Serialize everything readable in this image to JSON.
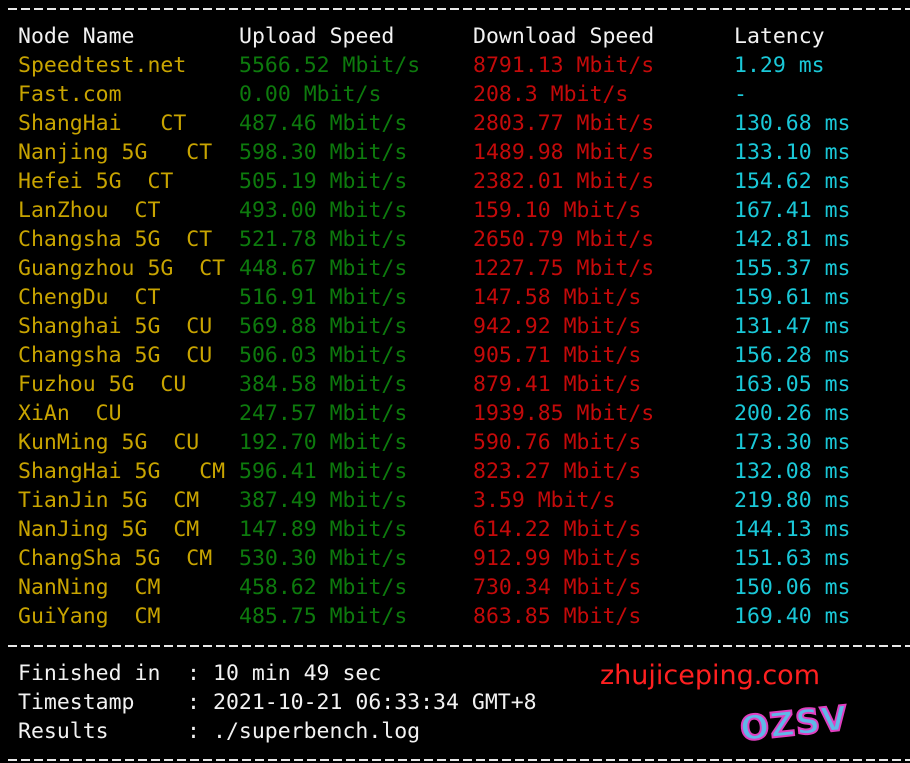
{
  "header": {
    "node": "Node Name",
    "upload": "Upload Speed",
    "download": "Download Speed",
    "latency": "Latency"
  },
  "rows": [
    {
      "node": "Speedtest.net",
      "upload": "5566.52 Mbit/s",
      "download": "8791.13 Mbit/s",
      "latency": "1.29 ms"
    },
    {
      "node": "Fast.com",
      "upload": "0.00 Mbit/s",
      "download": "208.3 Mbit/s",
      "latency": "-"
    },
    {
      "node": "ShangHai   CT",
      "upload": "487.46 Mbit/s",
      "download": "2803.77 Mbit/s",
      "latency": "130.68 ms"
    },
    {
      "node": "Nanjing 5G   CT",
      "upload": "598.30 Mbit/s",
      "download": "1489.98 Mbit/s",
      "latency": "133.10 ms"
    },
    {
      "node": "Hefei 5G  CT",
      "upload": "505.19 Mbit/s",
      "download": "2382.01 Mbit/s",
      "latency": "154.62 ms"
    },
    {
      "node": "LanZhou  CT",
      "upload": "493.00 Mbit/s",
      "download": "159.10 Mbit/s",
      "latency": "167.41 ms"
    },
    {
      "node": "Changsha 5G  CT",
      "upload": "521.78 Mbit/s",
      "download": "2650.79 Mbit/s",
      "latency": "142.81 ms"
    },
    {
      "node": "Guangzhou 5G  CT",
      "upload": "448.67 Mbit/s",
      "download": "1227.75 Mbit/s",
      "latency": "155.37 ms"
    },
    {
      "node": "ChengDu  CT",
      "upload": "516.91 Mbit/s",
      "download": "147.58 Mbit/s",
      "latency": "159.61 ms"
    },
    {
      "node": "Shanghai 5G  CU",
      "upload": "569.88 Mbit/s",
      "download": "942.92 Mbit/s",
      "latency": "131.47 ms"
    },
    {
      "node": "Changsha 5G  CU",
      "upload": "506.03 Mbit/s",
      "download": "905.71 Mbit/s",
      "latency": "156.28 ms"
    },
    {
      "node": "Fuzhou 5G  CU",
      "upload": "384.58 Mbit/s",
      "download": "879.41 Mbit/s",
      "latency": "163.05 ms"
    },
    {
      "node": "XiAn  CU",
      "upload": "247.57 Mbit/s",
      "download": "1939.85 Mbit/s",
      "latency": "200.26 ms"
    },
    {
      "node": "KunMing 5G  CU",
      "upload": "192.70 Mbit/s",
      "download": "590.76 Mbit/s",
      "latency": "173.30 ms"
    },
    {
      "node": "ShangHai 5G   CM",
      "upload": "596.41 Mbit/s",
      "download": "823.27 Mbit/s",
      "latency": "132.08 ms"
    },
    {
      "node": "TianJin 5G  CM",
      "upload": "387.49 Mbit/s",
      "download": "3.59 Mbit/s",
      "latency": "219.80 ms"
    },
    {
      "node": "NanJing 5G  CM",
      "upload": "147.89 Mbit/s",
      "download": "614.22 Mbit/s",
      "latency": "144.13 ms"
    },
    {
      "node": "ChangSha 5G  CM",
      "upload": "530.30 Mbit/s",
      "download": "912.99 Mbit/s",
      "latency": "151.63 ms"
    },
    {
      "node": "NanNing  CM",
      "upload": "458.62 Mbit/s",
      "download": "730.34 Mbit/s",
      "latency": "150.06 ms"
    },
    {
      "node": "GuiYang  CM",
      "upload": "485.75 Mbit/s",
      "download": "863.85 Mbit/s",
      "latency": "169.40 ms"
    }
  ],
  "footer": [
    {
      "label": "Finished in",
      "value": "10 min 49 sec"
    },
    {
      "label": "Timestamp",
      "value": "2021-10-21 06:33:34 GMT+8"
    },
    {
      "label": "Results",
      "value": "./superbench.log"
    }
  ],
  "footer_separator": ":",
  "watermark": "zhujiceping.com",
  "logo": "OZSV",
  "colors": {
    "node": "#c8a400",
    "upload": "#0d7a0d",
    "download": "#c40a0a",
    "latency": "#1ac8d8",
    "text": "#f2f2f2",
    "background": "#000000"
  }
}
